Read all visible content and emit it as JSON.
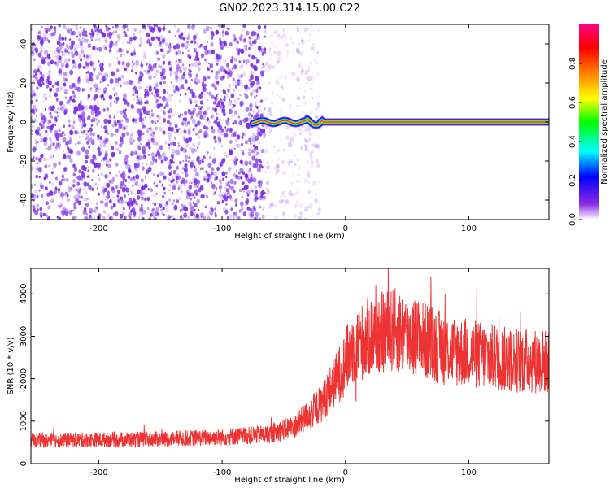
{
  "title": "GN02.2023.314.15.00.C22",
  "chart_data": [
    {
      "type": "heatmap",
      "xlabel": "Height of straight line (km)",
      "ylabel": "Frequency (Hz)",
      "xlim": [
        -255,
        165
      ],
      "ylim": [
        -50,
        50
      ],
      "xticks": [
        -200,
        -100,
        0,
        100
      ],
      "yticks": [
        -40,
        -20,
        0,
        20,
        40
      ],
      "colorbar": {
        "label": "Normalized spectral amplitude",
        "range": [
          0,
          1
        ],
        "ticks": [
          "0.0",
          "0.2",
          "0.4",
          "0.6",
          "0.8"
        ],
        "colors": [
          "#ffffff",
          "#8a2be2",
          "#0000ff",
          "#00ffff",
          "#00ff00",
          "#ffff00",
          "#ff8000",
          "#ff0000",
          "#ff0080"
        ]
      },
      "features": {
        "noise_region_x": [
          -255,
          -65
        ],
        "noise_color": "#7b2fe8",
        "signal_line_x": [
          -75,
          165
        ],
        "signal_line_freq_hz": 0,
        "signal_core_color": "#ff2a2a"
      },
      "grid": false
    },
    {
      "type": "line",
      "xlabel": "Height of straight line (km)",
      "ylabel": "SNR (10 * v/v)",
      "xlim": [
        -255,
        165
      ],
      "ylim": [
        0,
        4600
      ],
      "xticks": [
        -200,
        -100,
        0,
        100
      ],
      "yticks": [
        0,
        1000,
        2000,
        3000,
        4000
      ],
      "color": "#ee3333",
      "series": [
        {
          "x": [
            -255,
            -200,
            -150,
            -100,
            -60,
            -40,
            -20,
            -5,
            5,
            20,
            40,
            60,
            80,
            100,
            130,
            165
          ],
          "y": [
            550,
            560,
            580,
            620,
            700,
            900,
            1400,
            2100,
            2700,
            3000,
            3150,
            2950,
            2700,
            2600,
            2450,
            2400
          ]
        }
      ],
      "grid": false
    }
  ]
}
